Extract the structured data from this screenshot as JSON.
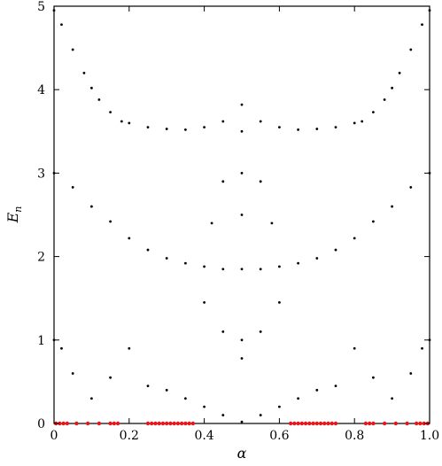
{
  "chart_data": {
    "type": "scatter",
    "title": "",
    "xlabel": "α",
    "ylabel": "E_n",
    "xlim": [
      0,
      1
    ],
    "ylim": [
      0,
      5
    ],
    "x_ticks": [
      "0",
      "0.2",
      "0.4",
      "0.6",
      "0.8",
      "1.0"
    ],
    "y_ticks": [
      "0",
      "1",
      "2",
      "3",
      "4",
      "5"
    ],
    "grid": false,
    "legend": "none",
    "series": [
      {
        "color": "#000000",
        "description": "energy spectrum points",
        "points": [
          [
            0.0,
            4.95
          ],
          [
            0.02,
            4.78
          ],
          [
            0.05,
            4.48
          ],
          [
            0.08,
            4.2
          ],
          [
            0.1,
            4.02
          ],
          [
            0.12,
            3.88
          ],
          [
            0.15,
            3.73
          ],
          [
            0.18,
            3.62
          ],
          [
            0.2,
            3.6
          ],
          [
            0.25,
            3.55
          ],
          [
            0.3,
            3.53
          ],
          [
            0.35,
            3.52
          ],
          [
            0.4,
            3.55
          ],
          [
            0.45,
            3.62
          ],
          [
            0.5,
            3.82
          ],
          [
            0.55,
            3.62
          ],
          [
            0.6,
            3.55
          ],
          [
            0.65,
            3.52
          ],
          [
            0.7,
            3.53
          ],
          [
            0.75,
            3.55
          ],
          [
            0.8,
            3.6
          ],
          [
            0.82,
            3.62
          ],
          [
            0.85,
            3.73
          ],
          [
            0.88,
            3.88
          ],
          [
            0.9,
            4.02
          ],
          [
            0.92,
            4.2
          ],
          [
            0.95,
            4.48
          ],
          [
            0.98,
            4.78
          ],
          [
            1.0,
            4.95
          ],
          [
            0.0,
            3.0
          ],
          [
            0.05,
            2.83
          ],
          [
            0.1,
            2.6
          ],
          [
            0.15,
            2.42
          ],
          [
            0.2,
            2.22
          ],
          [
            0.25,
            2.08
          ],
          [
            0.3,
            1.98
          ],
          [
            0.35,
            1.92
          ],
          [
            0.4,
            1.88
          ],
          [
            0.45,
            1.85
          ],
          [
            0.5,
            1.85
          ],
          [
            0.55,
            1.85
          ],
          [
            0.6,
            1.88
          ],
          [
            0.65,
            1.92
          ],
          [
            0.7,
            1.98
          ],
          [
            0.75,
            2.08
          ],
          [
            0.8,
            2.22
          ],
          [
            0.85,
            2.42
          ],
          [
            0.9,
            2.6
          ],
          [
            0.95,
            2.83
          ],
          [
            1.0,
            3.0
          ],
          [
            0.5,
            2.5
          ],
          [
            0.5,
            3.0
          ],
          [
            0.5,
            3.5
          ],
          [
            0.45,
            2.9
          ],
          [
            0.55,
            2.9
          ],
          [
            0.42,
            2.4
          ],
          [
            0.58,
            2.4
          ],
          [
            0.5,
            1.0
          ],
          [
            0.5,
            0.78
          ],
          [
            0.45,
            1.1
          ],
          [
            0.55,
            1.1
          ],
          [
            0.4,
            1.45
          ],
          [
            0.6,
            1.45
          ],
          [
            0.0,
            1.0
          ],
          [
            0.02,
            0.9
          ],
          [
            0.05,
            0.6
          ],
          [
            0.1,
            0.3
          ],
          [
            0.15,
            0.55
          ],
          [
            0.2,
            0.9
          ],
          [
            0.25,
            0.45
          ],
          [
            0.3,
            0.4
          ],
          [
            0.35,
            0.3
          ],
          [
            0.4,
            0.2
          ],
          [
            0.45,
            0.1
          ],
          [
            0.5,
            0.02
          ],
          [
            0.55,
            0.1
          ],
          [
            0.6,
            0.2
          ],
          [
            0.65,
            0.3
          ],
          [
            0.7,
            0.4
          ],
          [
            0.75,
            0.45
          ],
          [
            0.8,
            0.9
          ],
          [
            0.85,
            0.55
          ],
          [
            0.9,
            0.3
          ],
          [
            0.95,
            0.6
          ],
          [
            0.98,
            0.9
          ],
          [
            1.0,
            1.0
          ]
        ]
      },
      {
        "color": "#e8161a",
        "description": "zero-energy states",
        "x": [
          0.005,
          0.015,
          0.025,
          0.035,
          0.06,
          0.09,
          0.12,
          0.15,
          0.16,
          0.17,
          0.25,
          0.26,
          0.27,
          0.28,
          0.29,
          0.3,
          0.31,
          0.32,
          0.33,
          0.34,
          0.35,
          0.36,
          0.37,
          0.63,
          0.64,
          0.65,
          0.66,
          0.67,
          0.68,
          0.69,
          0.7,
          0.71,
          0.72,
          0.73,
          0.74,
          0.75,
          0.83,
          0.84,
          0.85,
          0.88,
          0.91,
          0.94,
          0.965,
          0.975,
          0.985,
          0.995
        ],
        "y": 0.0
      }
    ]
  }
}
